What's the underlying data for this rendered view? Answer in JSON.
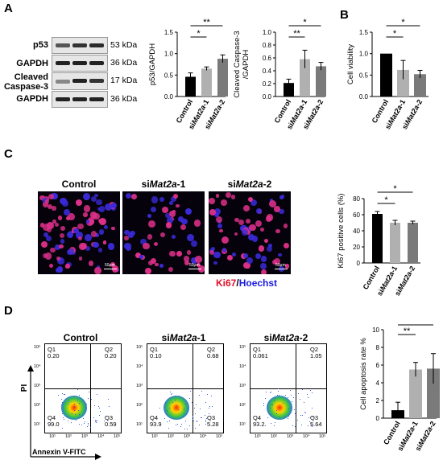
{
  "panels": {
    "A": "A",
    "B": "B",
    "C": "C",
    "D": "D"
  },
  "blot": {
    "labels": [
      "p53",
      "GAPDH",
      "Cleaved Caspase-3",
      "GAPDH"
    ],
    "kda": [
      "53 kDa",
      "36 kDa",
      "17 kDa",
      "36 kDa"
    ]
  },
  "microscopy": {
    "titles": [
      {
        "pre": "",
        "it": "",
        "post": "Control"
      },
      {
        "pre": "si",
        "it": "Mat2a",
        "post": "-1"
      },
      {
        "pre": "si",
        "it": "Mat2a",
        "post": "-2"
      }
    ],
    "scalebar": "50μm",
    "legend": {
      "ki67": "Ki67",
      "sep": "/",
      "hoechst": "Hoechst"
    },
    "colors": {
      "ki67": "#e0102a",
      "hoechst": "#1a1ae0"
    }
  },
  "flow": {
    "titles": [
      {
        "pre": "",
        "it": "",
        "post": "Control"
      },
      {
        "pre": "si",
        "it": "Mat2a",
        "post": "-1"
      },
      {
        "pre": "si",
        "it": "Mat2a",
        "post": "-2"
      }
    ],
    "ylabel": "PI",
    "xlabel": "Annexin V-FITC",
    "quadrant_names": [
      "Q1",
      "Q2",
      "Q3",
      "Q4"
    ],
    "quadrants": [
      {
        "Q1": "0.20",
        "Q2": "0.20",
        "Q3": "0.59",
        "Q4": "99.0"
      },
      {
        "Q1": "0.10",
        "Q2": "0.68",
        "Q3": "5.28",
        "Q4": "93.9"
      },
      {
        "Q1": "0.061",
        "Q2": "1.05",
        "Q3": "5.64",
        "Q4": "93.2"
      }
    ],
    "y_ticks": [
      "10⁵",
      "10⁴",
      "10³",
      "10²",
      "10¹"
    ],
    "x_ticks": [
      "10¹",
      "10²",
      "10³",
      "10⁴",
      "10⁵"
    ]
  },
  "chart_data": [
    {
      "id": "p53",
      "type": "bar",
      "categories": [
        "Control",
        "siMat2a-1",
        "siMat2a-2"
      ],
      "values": [
        0.46,
        0.65,
        0.88
      ],
      "errors": [
        0.09,
        0.04,
        0.09
      ],
      "ylabel": "p53/GAPDH",
      "ylim": [
        0,
        1.5
      ],
      "yticks": [
        "0.0",
        "0.5",
        "1.0",
        "1.5"
      ],
      "colors": [
        "#000000",
        "#b0b0b0",
        "#7a7a7a"
      ],
      "significance": [
        {
          "from": 0,
          "to": 1,
          "label": "*"
        },
        {
          "from": 0,
          "to": 2,
          "label": "**"
        }
      ]
    },
    {
      "id": "caspase",
      "type": "bar",
      "categories": [
        "Control",
        "siMat2a-1",
        "siMat2a-2"
      ],
      "values": [
        0.21,
        0.58,
        0.47
      ],
      "errors": [
        0.06,
        0.14,
        0.06
      ],
      "ylabel": "Cleaved Caspase-3 /GAPDH",
      "ylim": [
        0,
        1.0
      ],
      "yticks": [
        "0.0",
        "0.2",
        "0.4",
        "0.6",
        "0.8",
        "1.0"
      ],
      "colors": [
        "#000000",
        "#b0b0b0",
        "#7a7a7a"
      ],
      "significance": [
        {
          "from": 0,
          "to": 1,
          "label": "**"
        },
        {
          "from": 0,
          "to": 2,
          "label": "*"
        }
      ]
    },
    {
      "id": "viability",
      "type": "bar",
      "categories": [
        "Control",
        "siMat2a-1",
        "siMat2a-2"
      ],
      "values": [
        1.0,
        0.62,
        0.52
      ],
      "errors": [
        0.0,
        0.22,
        0.09
      ],
      "ylabel": "Cell viability",
      "ylim": [
        0,
        1.5
      ],
      "yticks": [
        "0.0",
        "0.5",
        "1.0",
        "1.5"
      ],
      "colors": [
        "#000000",
        "#b0b0b0",
        "#7a7a7a"
      ],
      "significance": [
        {
          "from": 0,
          "to": 1,
          "label": "*"
        },
        {
          "from": 0,
          "to": 2,
          "label": "*"
        }
      ]
    },
    {
      "id": "ki67",
      "type": "bar",
      "categories": [
        "Control",
        "siMat2a-1",
        "siMat2a-2"
      ],
      "values": [
        61,
        50,
        50
      ],
      "errors": [
        3,
        3,
        2
      ],
      "ylabel": "Ki67 positive cells (%)",
      "ylim": [
        0,
        80
      ],
      "yticks": [
        "0",
        "20",
        "40",
        "60",
        "80"
      ],
      "colors": [
        "#000000",
        "#b0b0b0",
        "#7a7a7a"
      ],
      "significance": [
        {
          "from": 0,
          "to": 1,
          "label": "*"
        },
        {
          "from": 0,
          "to": 2,
          "label": "*"
        }
      ]
    },
    {
      "id": "apoptosis",
      "type": "bar",
      "categories": [
        "Control",
        "siMat2a-1",
        "siMat2a-2"
      ],
      "values": [
        0.9,
        5.5,
        5.6
      ],
      "errors": [
        0.9,
        0.8,
        1.7
      ],
      "ylabel": "Cell apoptosis rate %",
      "ylim": [
        0,
        10
      ],
      "yticks": [
        "0",
        "2",
        "4",
        "6",
        "8",
        "10"
      ],
      "colors": [
        "#000000",
        "#b0b0b0",
        "#7a7a7a"
      ],
      "significance": [
        {
          "from": 0,
          "to": 1,
          "label": "**"
        },
        {
          "from": 0,
          "to": 2,
          "label": "**"
        }
      ]
    }
  ]
}
